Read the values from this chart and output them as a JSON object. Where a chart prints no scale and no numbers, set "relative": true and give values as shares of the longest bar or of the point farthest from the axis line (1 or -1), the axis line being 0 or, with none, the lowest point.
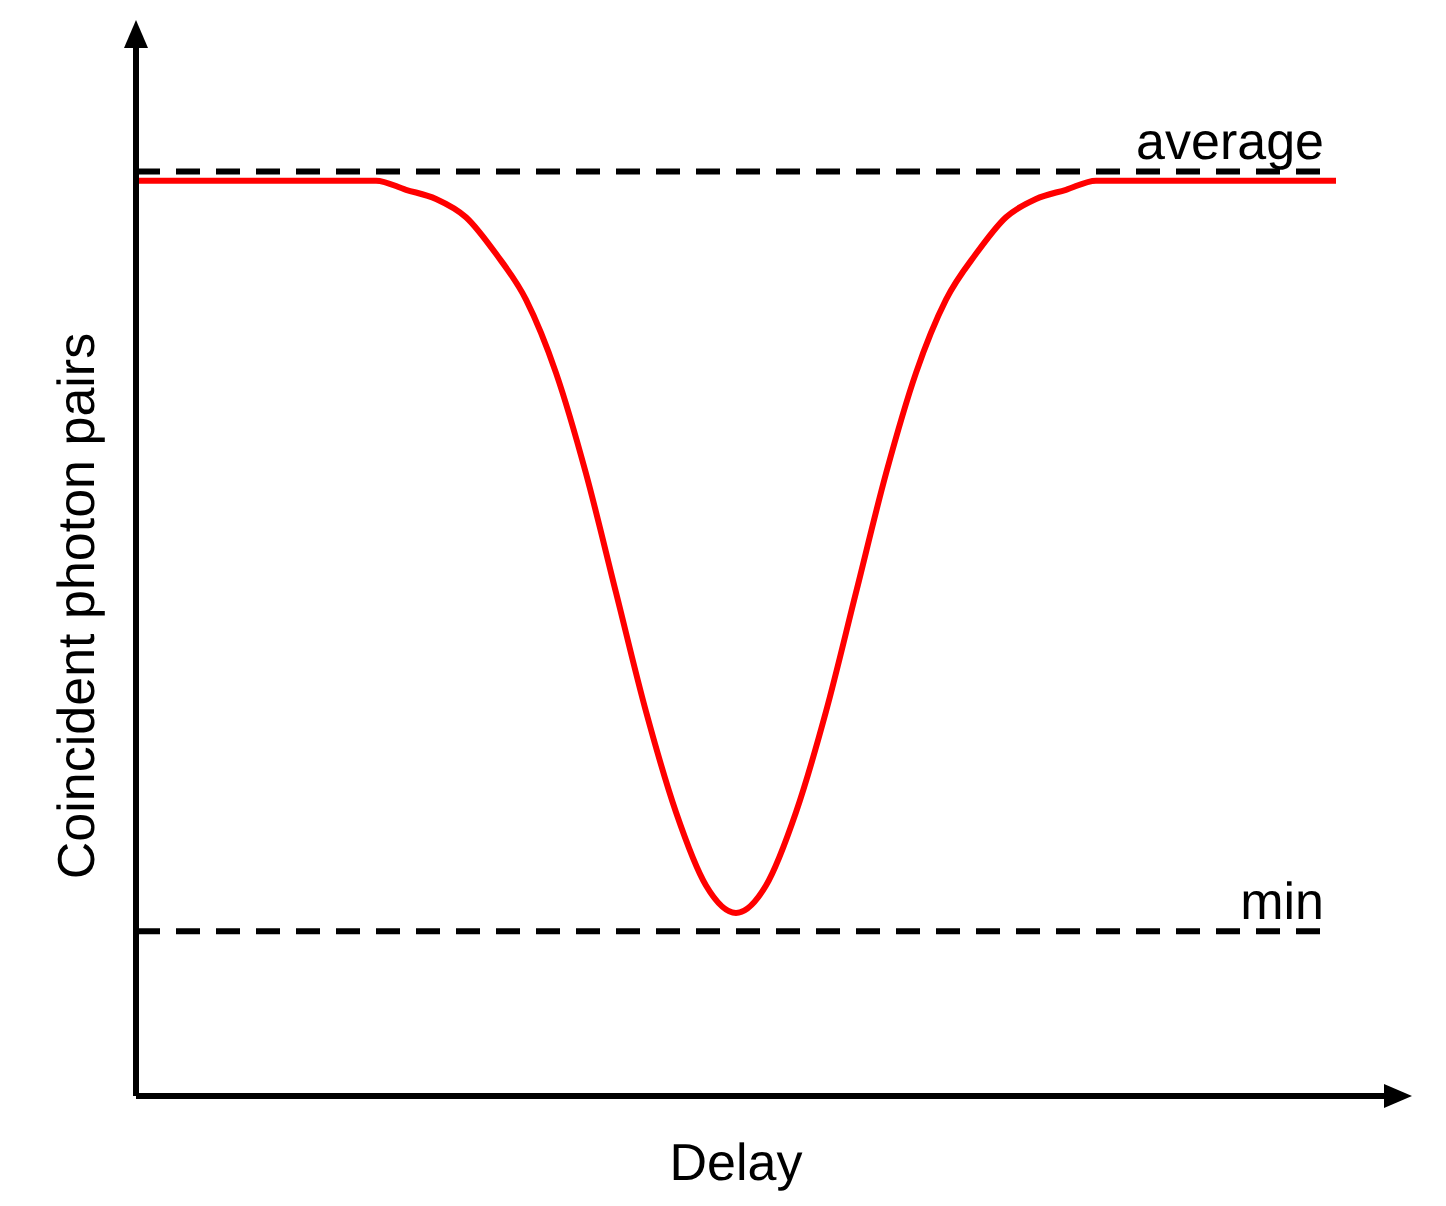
{
  "chart_data": {
    "type": "line",
    "relative": true,
    "xlabel": "Delay",
    "ylabel": "Coincident photon pairs",
    "categories": [
      null,
      null,
      null,
      null,
      null,
      null,
      null,
      null,
      null,
      null,
      null,
      null,
      null,
      null,
      null,
      null,
      null,
      null,
      null,
      null,
      null,
      null,
      null,
      null,
      null,
      null,
      null,
      null,
      null,
      null,
      null,
      null,
      null,
      null,
      null,
      null,
      null,
      null,
      null,
      null,
      null
    ],
    "series": [
      {
        "color": "#ff0000",
        "values": [
          1,
          1,
          1,
          1,
          1,
          1,
          1,
          1,
          1,
          0.99,
          0.98,
          0.96,
          0.92,
          0.87,
          0.79,
          0.68,
          0.55,
          0.42,
          0.31,
          0.23,
          0.2,
          0.23,
          0.31,
          0.42,
          0.55,
          0.68,
          0.79,
          0.87,
          0.92,
          0.96,
          0.98,
          0.99,
          1,
          1,
          1,
          1,
          1,
          1,
          1,
          1,
          1
        ]
      }
    ],
    "ref_lines": [
      {
        "axis": "y",
        "value": 1.01,
        "label": "average",
        "color": "#000000",
        "line_style": "dashed"
      },
      {
        "axis": "y",
        "value": 0.18,
        "label": "min",
        "color": "#000000",
        "line_style": "dashed"
      }
    ],
    "grid": false,
    "legend": false,
    "marker": "none",
    "line_style": "solid"
  }
}
